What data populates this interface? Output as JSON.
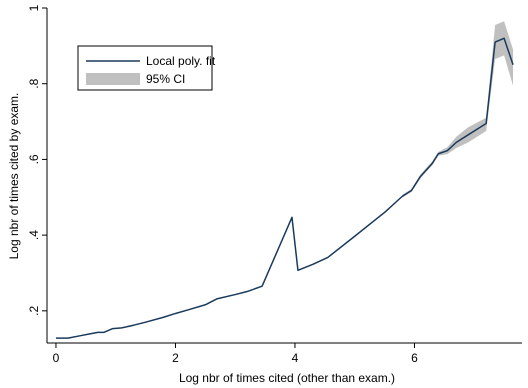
{
  "chart_data": {
    "type": "line",
    "xlabel": "Log nbr of times cited (other than exam.)",
    "ylabel": "Log nbr of times cited by exam.",
    "xlim": [
      -0.15,
      7.8
    ],
    "ylim": [
      0.115,
      1.0
    ],
    "x_ticks": [
      0,
      2,
      4,
      6
    ],
    "x_tick_labels": [
      "0",
      "2",
      "4",
      "6"
    ],
    "y_ticks": [
      0.2,
      0.4,
      0.6,
      0.8,
      1.0
    ],
    "y_tick_labels": [
      ".2",
      ".4",
      ".6",
      ".8",
      "1"
    ],
    "grid": false,
    "legend_position": "top-left",
    "series": [
      {
        "name": "Local poly. fit",
        "kind": "line",
        "color": "#1a3a5c",
        "x": [
          0.0,
          0.2,
          0.4,
          0.6,
          0.7,
          0.8,
          0.95,
          1.1,
          1.3,
          1.5,
          1.8,
          2.0,
          2.2,
          2.5,
          2.7,
          3.0,
          3.2,
          3.45,
          3.95,
          4.05,
          4.3,
          4.55,
          5.0,
          5.5,
          5.8,
          5.95,
          6.1,
          6.3,
          6.4,
          6.55,
          6.7,
          6.9,
          7.2,
          7.35,
          7.5,
          7.65
        ],
        "y": [
          0.128,
          0.128,
          0.134,
          0.14,
          0.143,
          0.143,
          0.153,
          0.155,
          0.162,
          0.17,
          0.183,
          0.193,
          0.202,
          0.216,
          0.232,
          0.243,
          0.251,
          0.265,
          0.447,
          0.307,
          0.323,
          0.341,
          0.397,
          0.46,
          0.503,
          0.518,
          0.555,
          0.59,
          0.615,
          0.623,
          0.645,
          0.665,
          0.695,
          0.91,
          0.92,
          0.85
        ]
      },
      {
        "name": "95% CI",
        "kind": "band",
        "color": "#c0c0c0",
        "x": [
          5.8,
          5.95,
          6.1,
          6.3,
          6.4,
          6.55,
          6.7,
          6.9,
          7.2,
          7.35,
          7.5,
          7.65
        ],
        "upper": [
          0.507,
          0.522,
          0.56,
          0.595,
          0.62,
          0.632,
          0.66,
          0.685,
          0.71,
          0.955,
          0.965,
          0.89
        ],
        "lower": [
          0.499,
          0.514,
          0.55,
          0.585,
          0.61,
          0.614,
          0.63,
          0.645,
          0.675,
          0.865,
          0.875,
          0.795
        ]
      }
    ]
  }
}
